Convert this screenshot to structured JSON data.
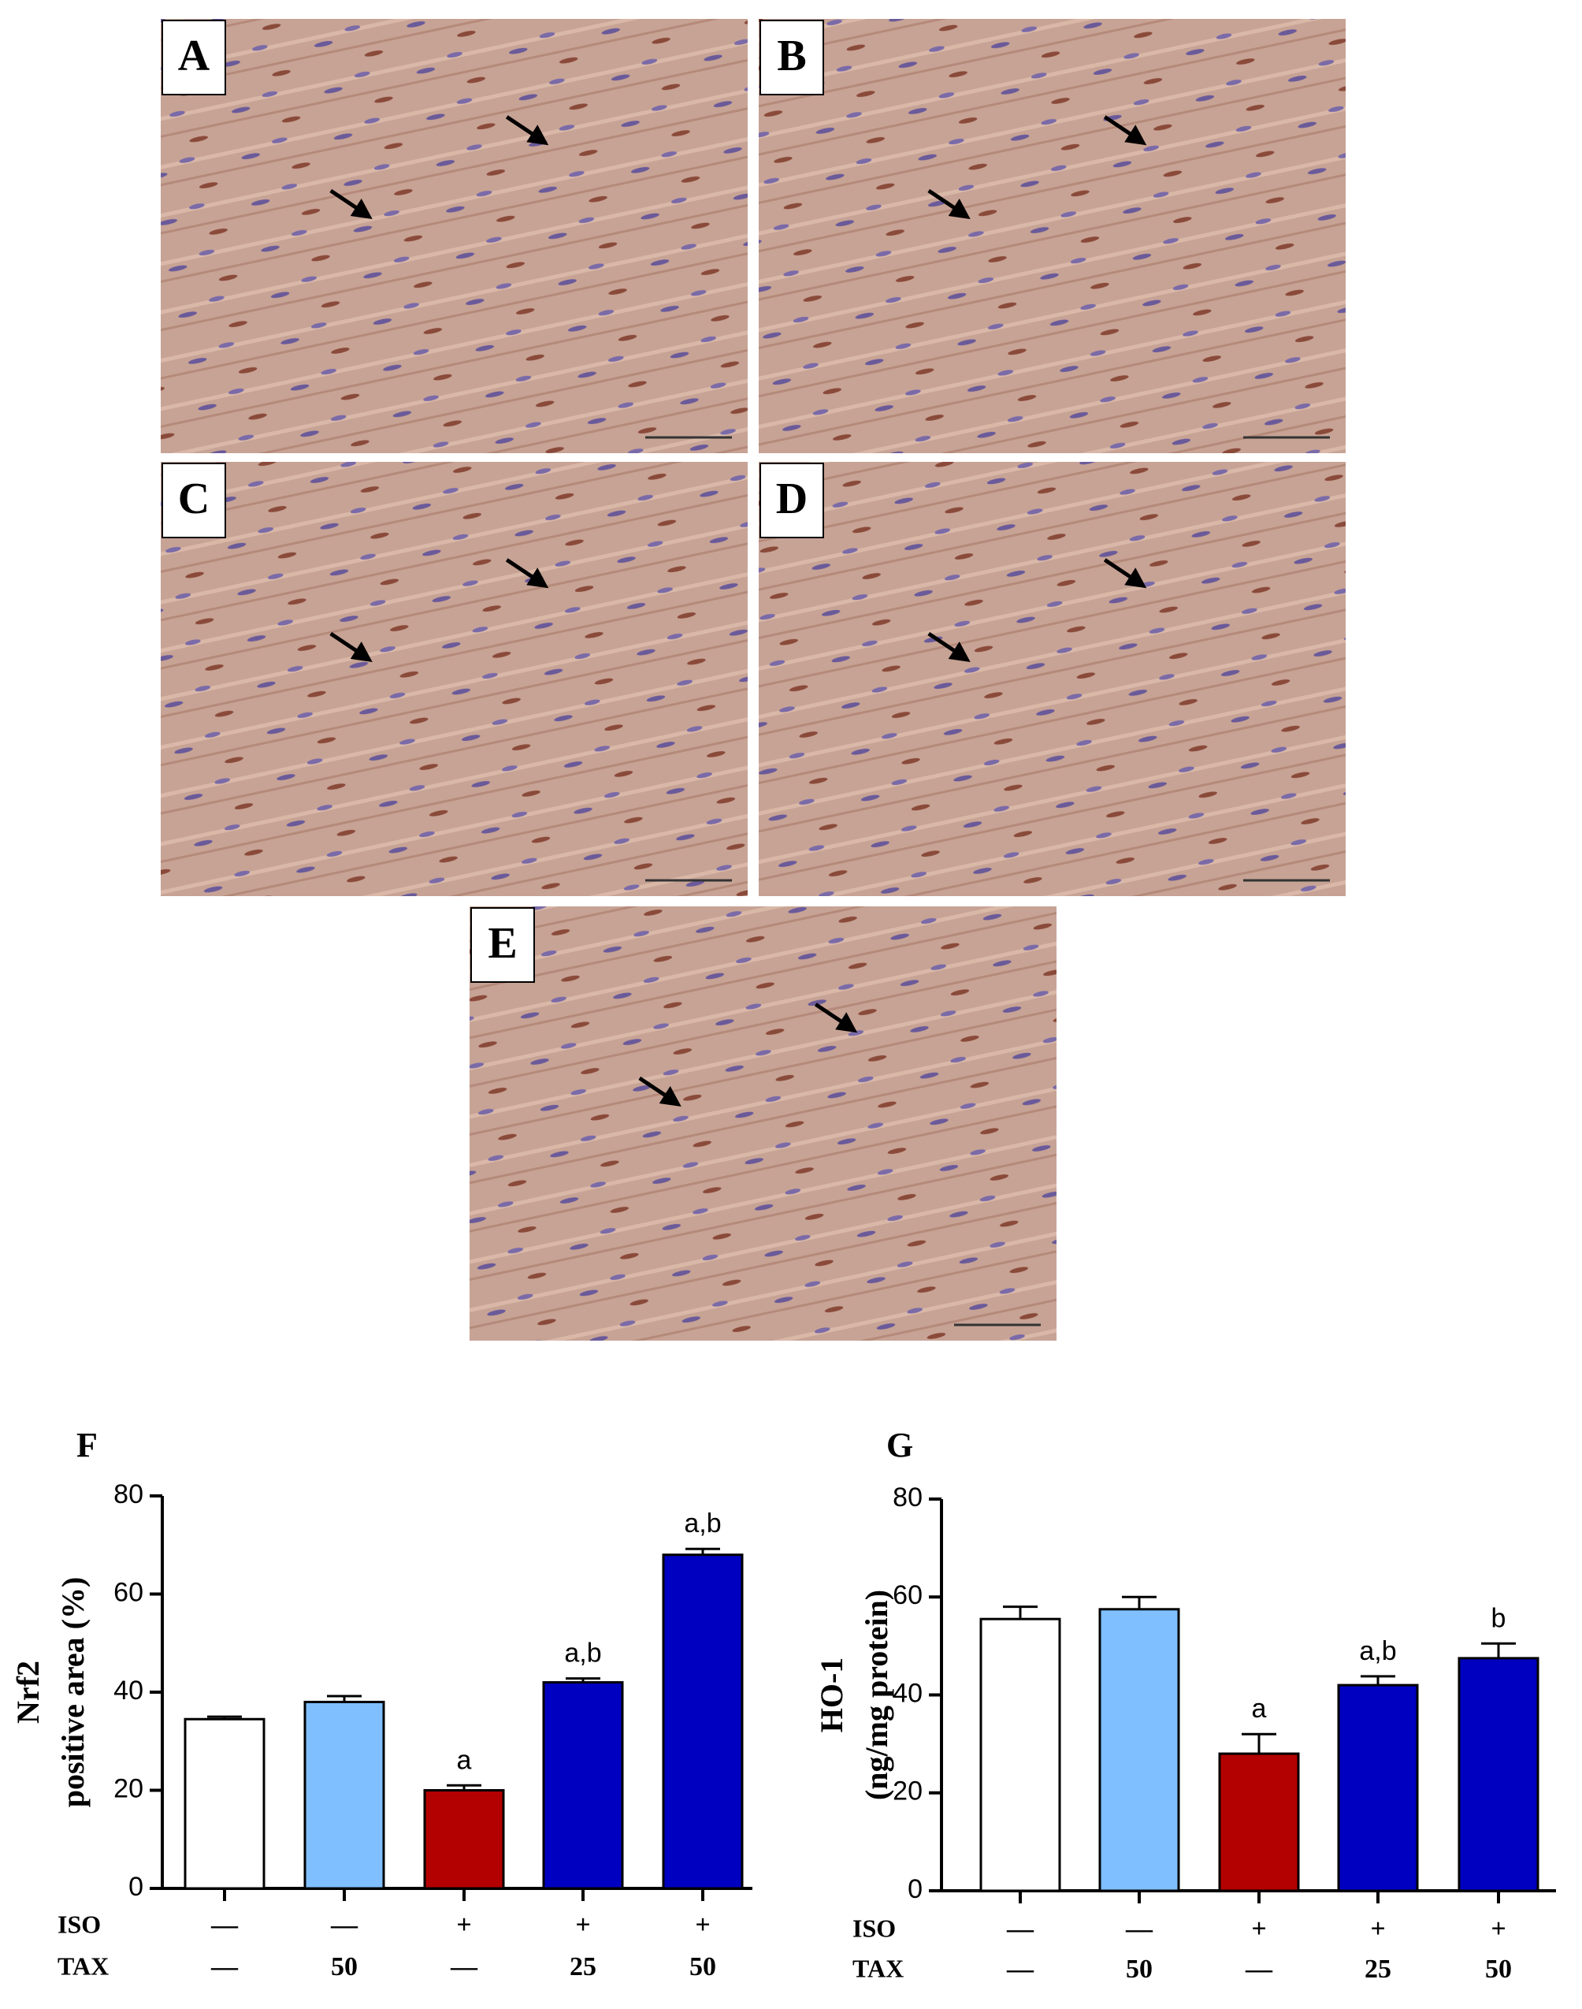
{
  "panels": [
    "A",
    "B",
    "C",
    "D",
    "E"
  ],
  "chart_data": [
    {
      "type": "bar",
      "panel_label": "F",
      "ylabel": [
        "Nrf2",
        "positive area (%)"
      ],
      "values": [
        34.5,
        38,
        20,
        42,
        68
      ],
      "errors": [
        0.5,
        1.2,
        1,
        0.8,
        1.2
      ],
      "value_labels": [
        null,
        null,
        "a",
        "a,b",
        "a,b"
      ],
      "colors": [
        "#ffffff",
        "#7fbfff",
        "#b30000",
        "#0000c0",
        "#0000c0"
      ],
      "treatment_rows": [
        {
          "label": "ISO",
          "values": [
            "—",
            "—",
            "+",
            "+",
            "+"
          ]
        },
        {
          "label": "TAX",
          "values": [
            "—",
            "50",
            "—",
            "25",
            "50"
          ]
        }
      ],
      "ylim": [
        0,
        80
      ],
      "yticks": [
        0,
        20,
        40,
        60,
        80
      ]
    },
    {
      "type": "bar",
      "panel_label": "G",
      "ylabel": [
        "HO-1",
        "(ng/mg protein)"
      ],
      "values": [
        55.5,
        57.5,
        28,
        42,
        47.5
      ],
      "errors": [
        2.5,
        2.5,
        4,
        1.8,
        3
      ],
      "value_labels": [
        null,
        null,
        "a",
        "a,b",
        "b"
      ],
      "colors": [
        "#ffffff",
        "#7fbfff",
        "#b30000",
        "#0000c0",
        "#0000c0"
      ],
      "treatment_rows": [
        {
          "label": "ISO",
          "values": [
            "—",
            "—",
            "+",
            "+",
            "+"
          ]
        },
        {
          "label": "TAX",
          "values": [
            "—",
            "50",
            "—",
            "25",
            "50"
          ]
        }
      ],
      "ylim": [
        0,
        80
      ],
      "yticks": [
        0,
        20,
        40,
        60,
        80
      ]
    }
  ]
}
